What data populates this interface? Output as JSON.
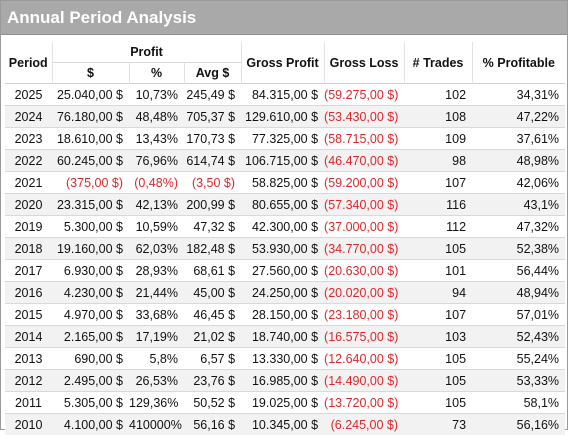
{
  "title": "Annual Period Analysis",
  "headers": {
    "period": "Period",
    "profit_group": "Profit",
    "profit_dollar": "$",
    "profit_pct": "%",
    "profit_avg": "Avg $",
    "gross_profit": "Gross Profit",
    "gross_loss": "Gross Loss",
    "trades": "# Trades",
    "pct_profitable": "% Profitable"
  },
  "rows": [
    {
      "period": "2025",
      "profit": "25.040,00 $",
      "pct": "10,73%",
      "avg": "245,49 $",
      "gross_profit": "84.315,00 $",
      "gross_loss": "(59.275,00 $)",
      "trades": "102",
      "pct_profitable": "34,31%",
      "negative": false
    },
    {
      "period": "2024",
      "profit": "76.180,00 $",
      "pct": "48,48%",
      "avg": "705,37 $",
      "gross_profit": "129.610,00 $",
      "gross_loss": "(53.430,00 $)",
      "trades": "108",
      "pct_profitable": "47,22%",
      "negative": false
    },
    {
      "period": "2023",
      "profit": "18.610,00 $",
      "pct": "13,43%",
      "avg": "170,73 $",
      "gross_profit": "77.325,00 $",
      "gross_loss": "(58.715,00 $)",
      "trades": "109",
      "pct_profitable": "37,61%",
      "negative": false
    },
    {
      "period": "2022",
      "profit": "60.245,00 $",
      "pct": "76,96%",
      "avg": "614,74 $",
      "gross_profit": "106.715,00 $",
      "gross_loss": "(46.470,00 $)",
      "trades": "98",
      "pct_profitable": "48,98%",
      "negative": false
    },
    {
      "period": "2021",
      "profit": "(375,00 $)",
      "pct": "(0,48%)",
      "avg": "(3,50 $)",
      "gross_profit": "58.825,00 $",
      "gross_loss": "(59.200,00 $)",
      "trades": "107",
      "pct_profitable": "42,06%",
      "negative": true
    },
    {
      "period": "2020",
      "profit": "23.315,00 $",
      "pct": "42,13%",
      "avg": "200,99 $",
      "gross_profit": "80.655,00 $",
      "gross_loss": "(57.340,00 $)",
      "trades": "116",
      "pct_profitable": "43,1%",
      "negative": false
    },
    {
      "period": "2019",
      "profit": "5.300,00 $",
      "pct": "10,59%",
      "avg": "47,32 $",
      "gross_profit": "42.300,00 $",
      "gross_loss": "(37.000,00 $)",
      "trades": "112",
      "pct_profitable": "47,32%",
      "negative": false
    },
    {
      "period": "2018",
      "profit": "19.160,00 $",
      "pct": "62,03%",
      "avg": "182,48 $",
      "gross_profit": "53.930,00 $",
      "gross_loss": "(34.770,00 $)",
      "trades": "105",
      "pct_profitable": "52,38%",
      "negative": false
    },
    {
      "period": "2017",
      "profit": "6.930,00 $",
      "pct": "28,93%",
      "avg": "68,61 $",
      "gross_profit": "27.560,00 $",
      "gross_loss": "(20.630,00 $)",
      "trades": "101",
      "pct_profitable": "56,44%",
      "negative": false
    },
    {
      "period": "2016",
      "profit": "4.230,00 $",
      "pct": "21,44%",
      "avg": "45,00 $",
      "gross_profit": "24.250,00 $",
      "gross_loss": "(20.020,00 $)",
      "trades": "94",
      "pct_profitable": "48,94%",
      "negative": false
    },
    {
      "period": "2015",
      "profit": "4.970,00 $",
      "pct": "33,68%",
      "avg": "46,45 $",
      "gross_profit": "28.150,00 $",
      "gross_loss": "(23.180,00 $)",
      "trades": "107",
      "pct_profitable": "57,01%",
      "negative": false
    },
    {
      "period": "2014",
      "profit": "2.165,00 $",
      "pct": "17,19%",
      "avg": "21,02 $",
      "gross_profit": "18.740,00 $",
      "gross_loss": "(16.575,00 $)",
      "trades": "103",
      "pct_profitable": "52,43%",
      "negative": false
    },
    {
      "period": "2013",
      "profit": "690,00 $",
      "pct": "5,8%",
      "avg": "6,57 $",
      "gross_profit": "13.330,00 $",
      "gross_loss": "(12.640,00 $)",
      "trades": "105",
      "pct_profitable": "55,24%",
      "negative": false
    },
    {
      "period": "2012",
      "profit": "2.495,00 $",
      "pct": "26,53%",
      "avg": "23,76 $",
      "gross_profit": "16.985,00 $",
      "gross_loss": "(14.490,00 $)",
      "trades": "105",
      "pct_profitable": "53,33%",
      "negative": false
    },
    {
      "period": "2011",
      "profit": "5.305,00 $",
      "pct": "129,36%",
      "avg": "50,52 $",
      "gross_profit": "19.025,00 $",
      "gross_loss": "(13.720,00 $)",
      "trades": "105",
      "pct_profitable": "58,1%",
      "negative": false
    },
    {
      "period": "2010",
      "profit": "4.100,00 $",
      "pct": "410000%",
      "avg": "56,16 $",
      "gross_profit": "10.345,00 $",
      "gross_loss": "(6.245,00 $)",
      "trades": "73",
      "pct_profitable": "56,16%",
      "negative": false
    }
  ],
  "colors": {
    "title_bar_bg": "#a9a9a9",
    "title_text": "#ffffff",
    "negative_text": "#e0262b",
    "alt_row_bg": "#f2f2f2"
  }
}
